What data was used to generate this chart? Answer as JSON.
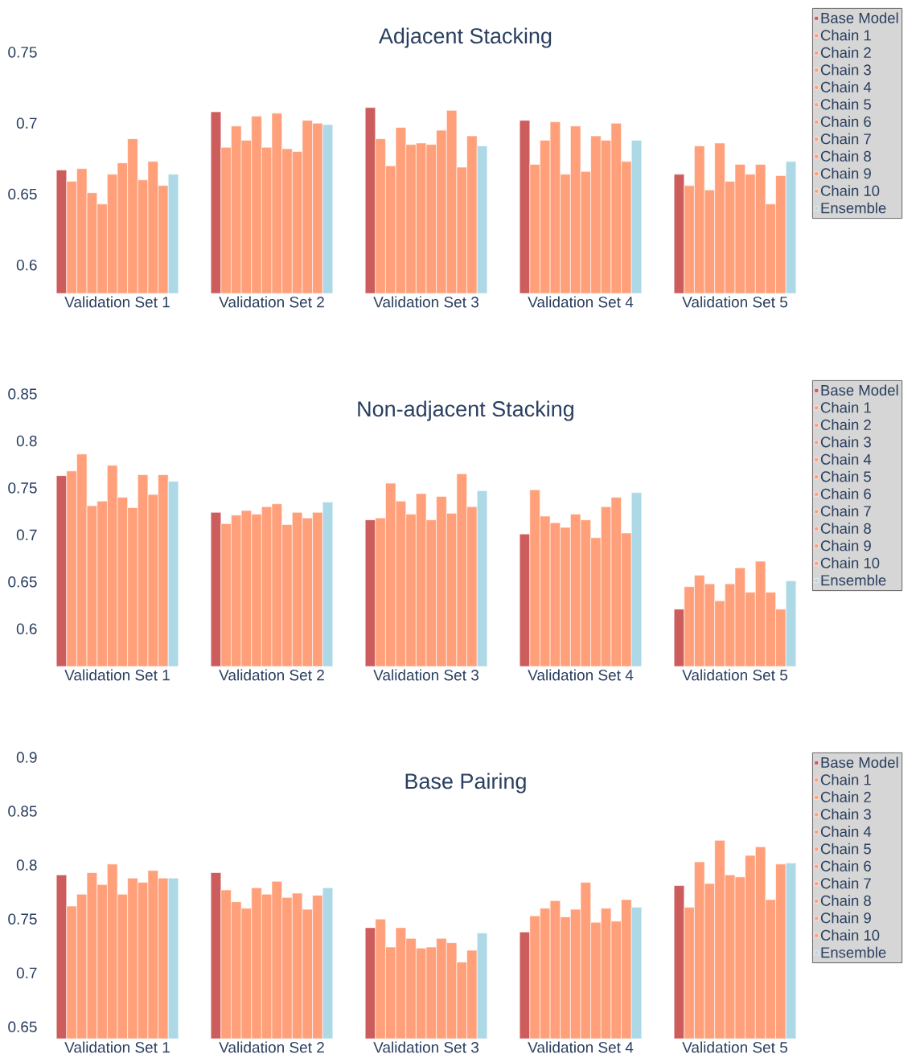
{
  "chart_data": [
    {
      "type": "bar",
      "title": "Adjacent Stacking",
      "categories": [
        "Validation Set 1",
        "Validation Set 2",
        "Validation Set 3",
        "Validation Set 4",
        "Validation Set 5"
      ],
      "ylim": [
        0.58,
        0.75
      ],
      "yticks": [
        0.6,
        0.65,
        0.7,
        0.75
      ],
      "legend": "top right",
      "series": [
        {
          "name": "Base Model",
          "color": "#cd5c5c",
          "values": [
            0.667,
            0.708,
            0.711,
            0.702,
            0.664
          ]
        },
        {
          "name": "Chain 1",
          "color": "#ffa07a",
          "values": [
            0.659,
            0.683,
            0.689,
            0.671,
            0.656
          ]
        },
        {
          "name": "Chain 2",
          "color": "#ffa07a",
          "values": [
            0.668,
            0.698,
            0.67,
            0.688,
            0.684
          ]
        },
        {
          "name": "Chain 3",
          "color": "#ffa07a",
          "values": [
            0.651,
            0.688,
            0.697,
            0.701,
            0.653
          ]
        },
        {
          "name": "Chain 4",
          "color": "#ffa07a",
          "values": [
            0.643,
            0.705,
            0.685,
            0.664,
            0.686
          ]
        },
        {
          "name": "Chain 5",
          "color": "#ffa07a",
          "values": [
            0.664,
            0.683,
            0.686,
            0.698,
            0.659
          ]
        },
        {
          "name": "Chain 6",
          "color": "#ffa07a",
          "values": [
            0.672,
            0.707,
            0.685,
            0.666,
            0.671
          ]
        },
        {
          "name": "Chain 7",
          "color": "#ffa07a",
          "values": [
            0.689,
            0.682,
            0.695,
            0.691,
            0.664
          ]
        },
        {
          "name": "Chain 8",
          "color": "#ffa07a",
          "values": [
            0.66,
            0.68,
            0.709,
            0.688,
            0.671
          ]
        },
        {
          "name": "Chain 9",
          "color": "#ffa07a",
          "values": [
            0.673,
            0.702,
            0.669,
            0.7,
            0.643
          ]
        },
        {
          "name": "Chain 10",
          "color": "#ffa07a",
          "values": [
            0.656,
            0.7,
            0.691,
            0.673,
            0.663
          ]
        },
        {
          "name": "Ensemble",
          "color": "#add8e6",
          "values": [
            0.664,
            0.699,
            0.684,
            0.688,
            0.673
          ]
        }
      ]
    },
    {
      "type": "bar",
      "title": "Non-adjacent Stacking",
      "categories": [
        "Validation Set 1",
        "Validation Set 2",
        "Validation Set 3",
        "Validation Set 4",
        "Validation Set 5"
      ],
      "ylim": [
        0.56,
        0.85
      ],
      "yticks": [
        0.6,
        0.65,
        0.7,
        0.75,
        0.8,
        0.85
      ],
      "legend": "top right",
      "series": [
        {
          "name": "Base Model",
          "color": "#cd5c5c",
          "values": [
            0.763,
            0.724,
            0.716,
            0.701,
            0.621
          ]
        },
        {
          "name": "Chain 1",
          "color": "#ffa07a",
          "values": [
            0.768,
            0.712,
            0.718,
            0.748,
            0.645
          ]
        },
        {
          "name": "Chain 2",
          "color": "#ffa07a",
          "values": [
            0.786,
            0.721,
            0.755,
            0.72,
            0.657
          ]
        },
        {
          "name": "Chain 3",
          "color": "#ffa07a",
          "values": [
            0.731,
            0.726,
            0.736,
            0.713,
            0.648
          ]
        },
        {
          "name": "Chain 4",
          "color": "#ffa07a",
          "values": [
            0.736,
            0.722,
            0.722,
            0.708,
            0.63
          ]
        },
        {
          "name": "Chain 5",
          "color": "#ffa07a",
          "values": [
            0.774,
            0.73,
            0.744,
            0.722,
            0.648
          ]
        },
        {
          "name": "Chain 6",
          "color": "#ffa07a",
          "values": [
            0.74,
            0.733,
            0.716,
            0.716,
            0.665
          ]
        },
        {
          "name": "Chain 7",
          "color": "#ffa07a",
          "values": [
            0.729,
            0.711,
            0.741,
            0.697,
            0.639
          ]
        },
        {
          "name": "Chain 8",
          "color": "#ffa07a",
          "values": [
            0.764,
            0.724,
            0.723,
            0.73,
            0.672
          ]
        },
        {
          "name": "Chain 9",
          "color": "#ffa07a",
          "values": [
            0.743,
            0.718,
            0.765,
            0.74,
            0.639
          ]
        },
        {
          "name": "Chain 10",
          "color": "#ffa07a",
          "values": [
            0.764,
            0.724,
            0.73,
            0.702,
            0.621
          ]
        },
        {
          "name": "Ensemble",
          "color": "#add8e6",
          "values": [
            0.757,
            0.735,
            0.747,
            0.745,
            0.651
          ]
        }
      ]
    },
    {
      "type": "bar",
      "title": "Base Pairing",
      "categories": [
        "Validation Set 1",
        "Validation Set 2",
        "Validation Set 3",
        "Validation Set 4",
        "Validation Set 5"
      ],
      "ylim": [
        0.639,
        0.9
      ],
      "yticks": [
        0.65,
        0.7,
        0.75,
        0.8,
        0.85,
        0.9
      ],
      "legend": "top right",
      "series": [
        {
          "name": "Base Model",
          "color": "#cd5c5c",
          "values": [
            0.791,
            0.793,
            0.742,
            0.738,
            0.781
          ]
        },
        {
          "name": "Chain 1",
          "color": "#ffa07a",
          "values": [
            0.762,
            0.777,
            0.75,
            0.753,
            0.761
          ]
        },
        {
          "name": "Chain 2",
          "color": "#ffa07a",
          "values": [
            0.773,
            0.766,
            0.724,
            0.76,
            0.803
          ]
        },
        {
          "name": "Chain 3",
          "color": "#ffa07a",
          "values": [
            0.793,
            0.76,
            0.742,
            0.767,
            0.783
          ]
        },
        {
          "name": "Chain 4",
          "color": "#ffa07a",
          "values": [
            0.782,
            0.779,
            0.732,
            0.752,
            0.823
          ]
        },
        {
          "name": "Chain 5",
          "color": "#ffa07a",
          "values": [
            0.801,
            0.773,
            0.723,
            0.759,
            0.791
          ]
        },
        {
          "name": "Chain 6",
          "color": "#ffa07a",
          "values": [
            0.773,
            0.785,
            0.724,
            0.784,
            0.789
          ]
        },
        {
          "name": "Chain 7",
          "color": "#ffa07a",
          "values": [
            0.788,
            0.77,
            0.732,
            0.747,
            0.809
          ]
        },
        {
          "name": "Chain 8",
          "color": "#ffa07a",
          "values": [
            0.784,
            0.774,
            0.728,
            0.76,
            0.817
          ]
        },
        {
          "name": "Chain 9",
          "color": "#ffa07a",
          "values": [
            0.795,
            0.759,
            0.71,
            0.748,
            0.768
          ]
        },
        {
          "name": "Chain 10",
          "color": "#ffa07a",
          "values": [
            0.788,
            0.772,
            0.721,
            0.768,
            0.801
          ]
        },
        {
          "name": "Ensemble",
          "color": "#add8e6",
          "values": [
            0.788,
            0.779,
            0.737,
            0.761,
            0.802
          ]
        }
      ]
    }
  ]
}
